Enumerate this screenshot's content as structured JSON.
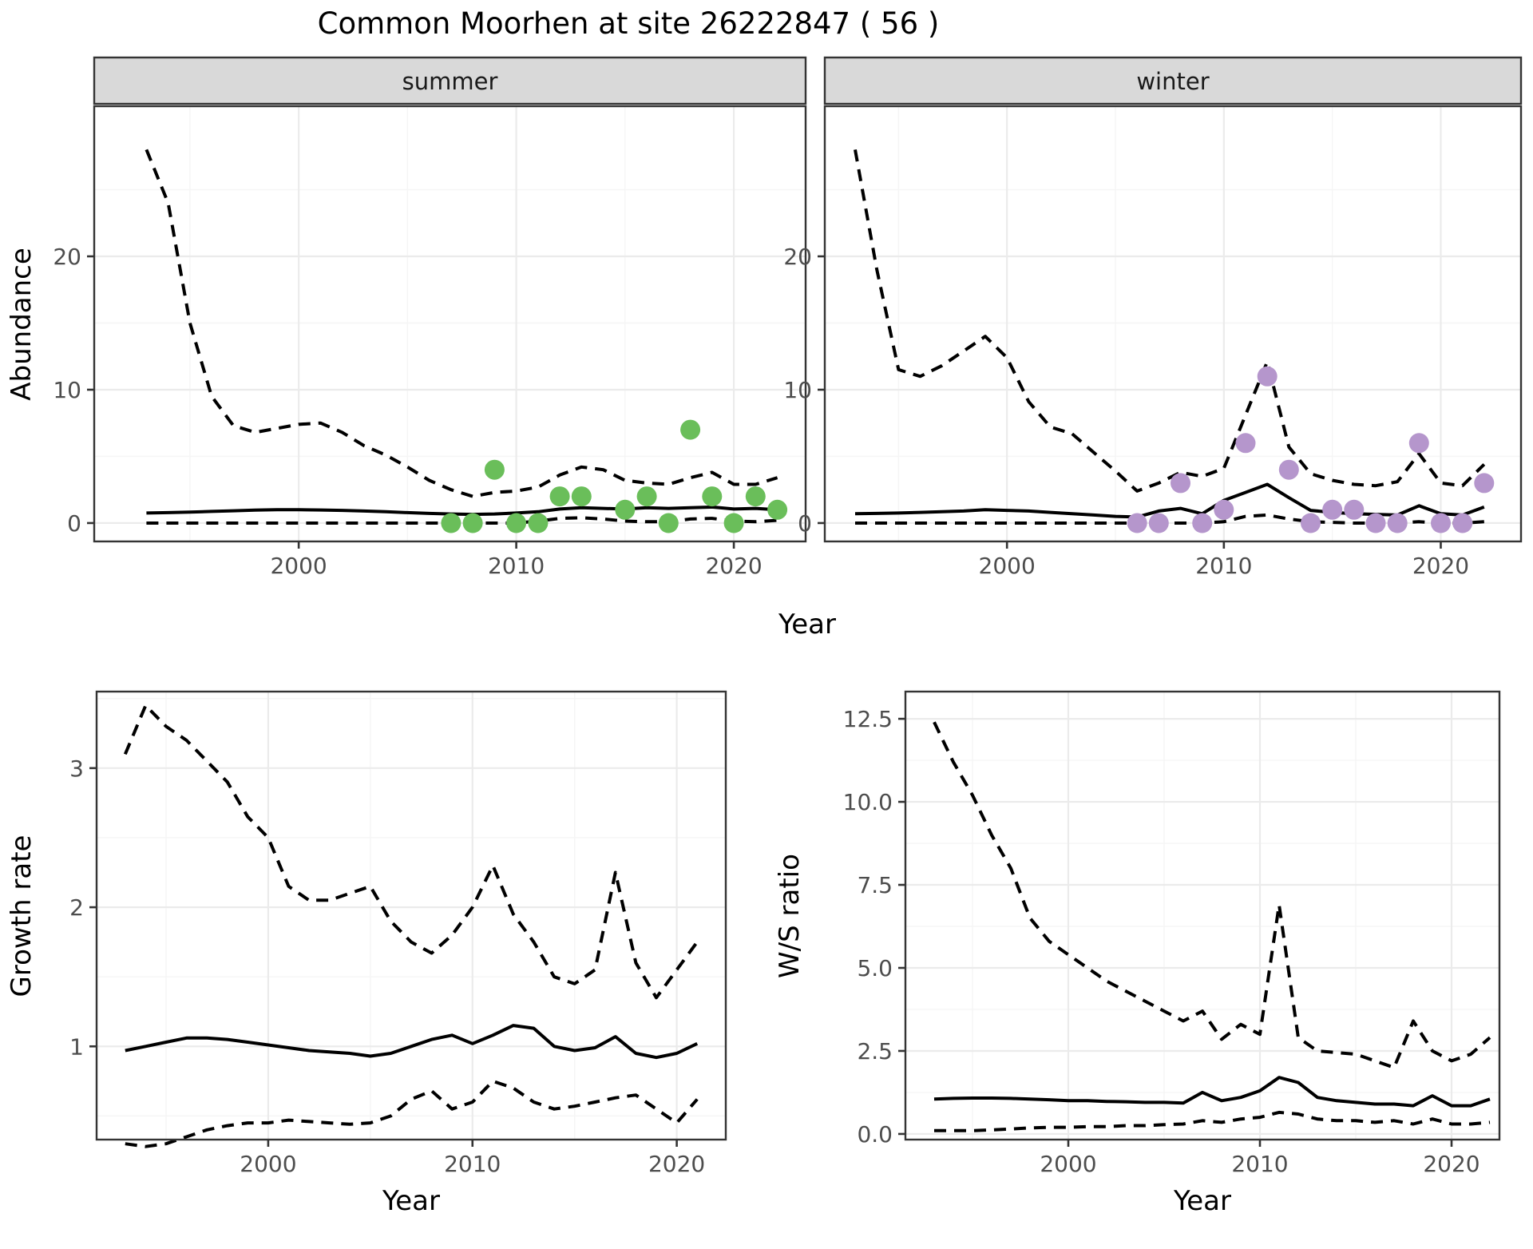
{
  "title": "Common Moorhen at site 26222847 ( 56 )",
  "colors": {
    "summer_points": "#6abe5a",
    "winter_points": "#b596cc",
    "line": "#000000",
    "grid_major": "#ebebeb",
    "grid_minor": "#f5f5f5",
    "strip_bg": "#d9d9d9",
    "panel_border": "#343434",
    "axis_text": "#4d4d4d",
    "background": "#ffffff"
  },
  "chart_data": [
    {
      "id": "abundance_summer",
      "type": "line",
      "facet_label": "summer",
      "xlabel": "Year",
      "ylabel": "Abundance",
      "x_domain": [
        1990.6,
        2023.3
      ],
      "y_domain": [
        -1.38,
        31.26
      ],
      "x_ticks": {
        "values": [
          2000,
          2010,
          2020
        ],
        "labels": [
          "2000",
          "2010",
          "2020"
        ],
        "minor": [
          1995,
          2005,
          2015
        ]
      },
      "y_ticks": {
        "values": [
          0,
          10,
          20
        ],
        "labels": [
          "0",
          "10",
          "20"
        ],
        "minor": [
          5,
          15,
          25
        ]
      },
      "x": [
        1993,
        1994,
        1995,
        1996,
        1997,
        1998,
        1999,
        2000,
        2001,
        2002,
        2003,
        2004,
        2005,
        2006,
        2007,
        2008,
        2009,
        2010,
        2011,
        2012,
        2013,
        2014,
        2015,
        2016,
        2017,
        2018,
        2019,
        2020,
        2021,
        2022
      ],
      "series": [
        {
          "name": "upper_95ci",
          "style": "dashed",
          "values": [
            28,
            24,
            15,
            9.5,
            7.3,
            6.8,
            7.1,
            7.4,
            7.5,
            6.8,
            5.8,
            5.1,
            4.2,
            3.2,
            2.5,
            2.0,
            2.3,
            2.4,
            2.7,
            3.6,
            4.2,
            4.0,
            3.2,
            3.0,
            2.9,
            3.4,
            3.8,
            2.9,
            2.9,
            3.4
          ]
        },
        {
          "name": "median",
          "style": "solid",
          "values": [
            0.75,
            0.78,
            0.82,
            0.87,
            0.92,
            0.97,
            1.0,
            1.0,
            0.98,
            0.95,
            0.9,
            0.85,
            0.78,
            0.72,
            0.68,
            0.65,
            0.68,
            0.75,
            0.85,
            1.05,
            1.15,
            1.1,
            1.05,
            1.15,
            1.1,
            1.15,
            1.2,
            1.05,
            1.1,
            1.0
          ]
        },
        {
          "name": "lower_95ci",
          "style": "dashed",
          "values": [
            0,
            0,
            0,
            0,
            0,
            0,
            0,
            0,
            0,
            0,
            0,
            0,
            0,
            0,
            0,
            0,
            0,
            0,
            0.15,
            0.35,
            0.4,
            0.3,
            0.15,
            0.1,
            0.1,
            0.3,
            0.35,
            0.15,
            0.1,
            0.2
          ]
        }
      ],
      "points": {
        "name": "observed-count",
        "color_key": "summer_points",
        "x": [
          2007,
          2008,
          2009,
          2010,
          2011,
          2012,
          2013,
          2015,
          2016,
          2017,
          2018,
          2019,
          2020,
          2021,
          2022
        ],
        "y": [
          0,
          0,
          4,
          0,
          0,
          2,
          2,
          1,
          2,
          0,
          7,
          2,
          0,
          2,
          1
        ]
      }
    },
    {
      "id": "abundance_winter",
      "type": "line",
      "facet_label": "winter",
      "xlabel": "Year",
      "ylabel": "Abundance",
      "x_domain": [
        1991.6,
        2023.7
      ],
      "y_domain": [
        -1.38,
        31.26
      ],
      "x_ticks": {
        "values": [
          2000,
          2010,
          2020
        ],
        "labels": [
          "2000",
          "2010",
          "2020"
        ],
        "minor": [
          1995,
          2005,
          2015
        ]
      },
      "y_ticks": {
        "values": [
          0,
          10,
          20
        ],
        "labels": [
          "0",
          "10",
          "20"
        ],
        "minor": [
          5,
          15,
          25
        ]
      },
      "x": [
        1993,
        1994,
        1995,
        1996,
        1997,
        1998,
        1999,
        2000,
        2001,
        2002,
        2003,
        2004,
        2005,
        2006,
        2007,
        2008,
        2009,
        2010,
        2011,
        2012,
        2013,
        2014,
        2015,
        2016,
        2017,
        2018,
        2019,
        2020,
        2021,
        2022
      ],
      "series": [
        {
          "name": "upper_95ci",
          "style": "dashed",
          "values": [
            28,
            19,
            11.5,
            11,
            11.8,
            12.9,
            14,
            12.4,
            9.1,
            7.2,
            6.7,
            5.3,
            3.9,
            2.4,
            3.0,
            3.8,
            3.5,
            4.1,
            8.1,
            12.1,
            5.7,
            3.7,
            3.2,
            2.9,
            2.8,
            3.1,
            5.2,
            3.0,
            2.8,
            4.4
          ]
        },
        {
          "name": "median",
          "style": "solid",
          "values": [
            0.7,
            0.72,
            0.75,
            0.8,
            0.85,
            0.9,
            1.0,
            0.95,
            0.9,
            0.8,
            0.7,
            0.6,
            0.5,
            0.45,
            0.9,
            1.1,
            0.7,
            1.7,
            2.3,
            2.9,
            1.9,
            0.95,
            0.8,
            0.7,
            0.65,
            0.6,
            1.3,
            0.7,
            0.6,
            1.2
          ]
        },
        {
          "name": "lower_95ci",
          "style": "dashed",
          "values": [
            0,
            0,
            0,
            0,
            0,
            0,
            0,
            0,
            0,
            0,
            0,
            0,
            0,
            0,
            0,
            0,
            0,
            0.1,
            0.5,
            0.6,
            0.3,
            0.1,
            0.05,
            0,
            0,
            0,
            0.1,
            0,
            0,
            0.1
          ]
        }
      ],
      "points": {
        "name": "observed-count",
        "color_key": "winter_points",
        "x": [
          2006,
          2007,
          2008,
          2009,
          2010,
          2011,
          2012,
          2013,
          2014,
          2015,
          2016,
          2017,
          2018,
          2019,
          2020,
          2021,
          2022
        ],
        "y": [
          0,
          0,
          3,
          0,
          1,
          6,
          11,
          4,
          0,
          1,
          1,
          0,
          0,
          6,
          0,
          0,
          3
        ]
      }
    },
    {
      "id": "growth_rate",
      "type": "line",
      "facet_label": null,
      "xlabel": "Year",
      "ylabel": "Growth rate",
      "x_domain": [
        1991.6,
        2022.4
      ],
      "y_domain": [
        0.33,
        3.55
      ],
      "x_ticks": {
        "values": [
          2000,
          2010,
          2020
        ],
        "labels": [
          "2000",
          "2010",
          "2020"
        ],
        "minor": [
          1995,
          2005,
          2015
        ]
      },
      "y_ticks": {
        "values": [
          1,
          2,
          3
        ],
        "labels": [
          "1",
          "2",
          "3"
        ],
        "minor": [
          0.5,
          1.5,
          2.5,
          3.5
        ]
      },
      "x": [
        1993,
        1994,
        1995,
        1996,
        1997,
        1998,
        1999,
        2000,
        2001,
        2002,
        2003,
        2004,
        2005,
        2006,
        2007,
        2008,
        2009,
        2010,
        2011,
        2012,
        2013,
        2014,
        2015,
        2016,
        2017,
        2018,
        2019,
        2020,
        2021
      ],
      "series": [
        {
          "name": "upper_95ci",
          "style": "dashed",
          "values": [
            3.1,
            3.45,
            3.3,
            3.2,
            3.05,
            2.9,
            2.65,
            2.5,
            2.15,
            2.05,
            2.05,
            2.1,
            2.15,
            1.9,
            1.75,
            1.67,
            1.8,
            2.0,
            2.3,
            1.95,
            1.75,
            1.5,
            1.45,
            1.55,
            2.25,
            1.6,
            1.35,
            1.55,
            1.75
          ]
        },
        {
          "name": "median",
          "style": "solid",
          "values": [
            0.97,
            1.0,
            1.03,
            1.06,
            1.06,
            1.05,
            1.03,
            1.01,
            0.99,
            0.97,
            0.96,
            0.95,
            0.93,
            0.95,
            1.0,
            1.05,
            1.08,
            1.02,
            1.08,
            1.15,
            1.13,
            1.0,
            0.97,
            0.99,
            1.07,
            0.95,
            0.92,
            0.95,
            1.02
          ]
        },
        {
          "name": "lower_95ci",
          "style": "dashed",
          "values": [
            0.3,
            0.28,
            0.3,
            0.35,
            0.4,
            0.43,
            0.45,
            0.45,
            0.47,
            0.46,
            0.45,
            0.44,
            0.45,
            0.5,
            0.62,
            0.68,
            0.55,
            0.6,
            0.75,
            0.7,
            0.6,
            0.55,
            0.57,
            0.6,
            0.63,
            0.65,
            0.55,
            0.45,
            0.62
          ]
        }
      ],
      "points": null
    },
    {
      "id": "ws_ratio",
      "type": "line",
      "facet_label": null,
      "xlabel": "Year",
      "ylabel": "W/S ratio",
      "x_domain": [
        1991.5,
        2022.5
      ],
      "y_domain": [
        -0.17,
        13.32
      ],
      "x_ticks": {
        "values": [
          2000,
          2010,
          2020
        ],
        "labels": [
          "2000",
          "2010",
          "2020"
        ],
        "minor": [
          1995,
          2005,
          2015
        ]
      },
      "y_ticks": {
        "values": [
          0,
          2.5,
          5,
          7.5,
          10,
          12.5
        ],
        "labels": [
          "0.0",
          "2.5",
          "5.0",
          "7.5",
          "10.0",
          "12.5"
        ],
        "minor": [
          1.25,
          3.75,
          6.25,
          8.75,
          11.25
        ]
      },
      "x": [
        1993,
        1994,
        1995,
        1996,
        1997,
        1998,
        1999,
        2000,
        2001,
        2002,
        2003,
        2004,
        2005,
        2006,
        2007,
        2008,
        2009,
        2010,
        2011,
        2012,
        2013,
        2014,
        2015,
        2016,
        2017,
        2018,
        2019,
        2020,
        2021,
        2022
      ],
      "series": [
        {
          "name": "upper_95ci",
          "style": "dashed",
          "values": [
            12.4,
            11.2,
            10.2,
            9.0,
            8.0,
            6.5,
            5.8,
            5.4,
            5.0,
            4.6,
            4.3,
            4.0,
            3.7,
            3.4,
            3.7,
            2.85,
            3.3,
            3.0,
            6.9,
            2.9,
            2.5,
            2.45,
            2.4,
            2.2,
            2.0,
            3.4,
            2.5,
            2.2,
            2.4,
            2.9
          ]
        },
        {
          "name": "median",
          "style": "solid",
          "values": [
            1.05,
            1.07,
            1.08,
            1.08,
            1.07,
            1.05,
            1.03,
            1.0,
            1.0,
            0.98,
            0.97,
            0.95,
            0.95,
            0.93,
            1.25,
            1.0,
            1.1,
            1.3,
            1.7,
            1.55,
            1.1,
            1.0,
            0.95,
            0.9,
            0.9,
            0.85,
            1.15,
            0.85,
            0.85,
            1.05
          ]
        },
        {
          "name": "lower_95ci",
          "style": "dashed",
          "values": [
            0.1,
            0.1,
            0.1,
            0.12,
            0.15,
            0.18,
            0.2,
            0.2,
            0.22,
            0.22,
            0.25,
            0.25,
            0.28,
            0.3,
            0.4,
            0.35,
            0.45,
            0.5,
            0.65,
            0.6,
            0.45,
            0.4,
            0.4,
            0.35,
            0.4,
            0.3,
            0.45,
            0.3,
            0.3,
            0.35
          ]
        }
      ],
      "points": null
    }
  ]
}
